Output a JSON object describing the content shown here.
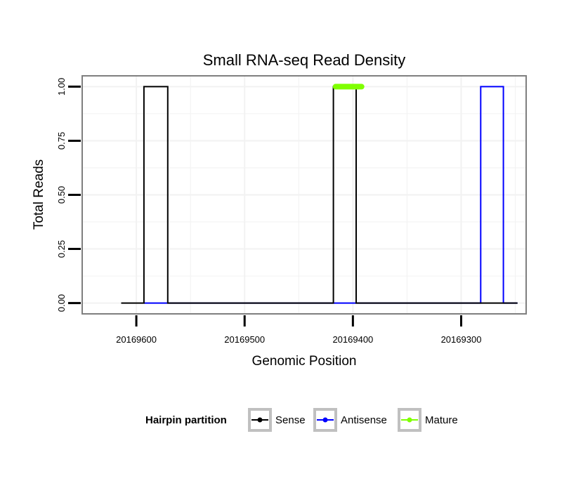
{
  "chart_data": {
    "type": "line",
    "title": "Small RNA-seq Read Density",
    "xlabel": "Genomic Position",
    "ylabel": "Total Reads",
    "x_reversed": true,
    "xlim": [
      20169650,
      20169240
    ],
    "ylim": [
      -0.05,
      1.05
    ],
    "x_ticks": [
      20169600,
      20169500,
      20169400,
      20169300
    ],
    "x_tick_labels": [
      "20169600",
      "20169500",
      "20169400",
      "20169300"
    ],
    "y_ticks": [
      0,
      0.25,
      0.5,
      0.75,
      1.0
    ],
    "y_tick_labels": [
      "0.00",
      "0.25",
      "0.50",
      "0.75",
      "1.00"
    ],
    "grid": true,
    "legend": {
      "title": "Hairpin partition",
      "position": "bottom",
      "entries": [
        "Sense",
        "Antisense",
        "Mature"
      ]
    },
    "colors": {
      "Sense": "#000000",
      "Antisense": "#0000ff",
      "Mature": "#7fff00",
      "panel_border": "#7f7f7f",
      "grid": "#f2f2f2"
    },
    "series": [
      {
        "name": "Sense",
        "x": [
          20169614,
          20169593,
          20169593,
          20169571,
          20169571,
          20169418,
          20169418,
          20169397,
          20169397,
          20169248
        ],
        "y": [
          0,
          0,
          1,
          1,
          0,
          0,
          1,
          1,
          0,
          0
        ]
      },
      {
        "name": "Antisense",
        "x": [
          20169593,
          20169571,
          20169571,
          20169282,
          20169282,
          20169261,
          20169261,
          20169248
        ],
        "y": [
          0,
          0,
          0,
          0,
          1,
          1,
          0,
          0
        ]
      },
      {
        "name": "Mature",
        "x": [
          20169416,
          20169392
        ],
        "y": [
          1,
          1
        ]
      }
    ]
  }
}
